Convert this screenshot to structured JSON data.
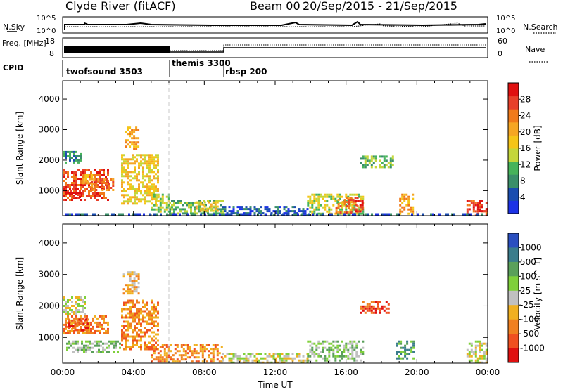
{
  "header": {
    "station": "Clyde River (fitACF)",
    "beam": "Beam 00",
    "date_range": "20/Sep/2015 - 21/Sep/2015"
  },
  "top_panels": {
    "nsky_label": "N.Sky",
    "nsky_ticks": [
      "10^5",
      "10^0"
    ],
    "nsearch_label": "N.Search",
    "nsearch_ticks": [
      "10^5",
      "10^0"
    ],
    "freq_label": "Freq. [MHz]",
    "freq_ticks": [
      "18",
      "8"
    ],
    "nave_label": "Nave",
    "nave_ticks": [
      "60",
      "0"
    ],
    "cpid_label": "CPID",
    "cpids": [
      {
        "name": "twofsound 3503",
        "start_h": 0,
        "end_h": 6
      },
      {
        "name": "themis 3300",
        "start_h": 6,
        "end_h": 9
      },
      {
        "name": "rbsp 200",
        "start_h": 9,
        "end_h": 24
      }
    ]
  },
  "colors": {
    "power": [
      "#1c32e6",
      "#1a4db0",
      "#3a8f6a",
      "#46b35a",
      "#c4d63a",
      "#f5c518",
      "#f5a623",
      "#f07a1a",
      "#e8402a",
      "#e01010"
    ],
    "velocity": [
      "#2a4fc0",
      "#3a7d8c",
      "#5aa05a",
      "#7fd03a",
      "#c0c0c0",
      "#f0b020",
      "#f08020",
      "#f05020",
      "#e01010"
    ],
    "guide_line": "#c8c8c8"
  },
  "chart_data": [
    {
      "type": "heatmap",
      "title": "",
      "ylabel": "Slant Range [km]",
      "xlabel": "",
      "xlim": [
        0,
        24
      ],
      "ylim": [
        180,
        4600
      ],
      "y_ticks": [
        "1000",
        "2000",
        "3000",
        "4000"
      ],
      "colorbar_label": "Power [dB]",
      "colorbar_ticks": [
        "4",
        "8",
        "12",
        "16",
        "20",
        "24",
        "28"
      ],
      "regions": [
        {
          "x0": 0.0,
          "x1": 2.6,
          "y0": 700,
          "y1": 1700,
          "level": 8
        },
        {
          "x0": 1.0,
          "x1": 1.6,
          "y0": 1250,
          "y1": 1550,
          "level": 6
        },
        {
          "x0": 0.2,
          "x1": 1.0,
          "y0": 800,
          "y1": 1100,
          "level": 9
        },
        {
          "x0": 1.6,
          "x1": 2.8,
          "y0": 1000,
          "y1": 1400,
          "level": 7
        },
        {
          "x0": 3.3,
          "x1": 5.4,
          "y0": 600,
          "y1": 2200,
          "level": 5
        },
        {
          "x0": 3.5,
          "x1": 4.3,
          "y0": 2400,
          "y1": 3100,
          "level": 6
        },
        {
          "x0": 0.0,
          "x1": 1.0,
          "y0": 1900,
          "y1": 2300,
          "level": 2
        },
        {
          "x0": 5.0,
          "x1": 6.0,
          "y0": 300,
          "y1": 900,
          "level": 4
        },
        {
          "x0": 6.0,
          "x1": 9.0,
          "y0": 250,
          "y1": 700,
          "level": 3
        },
        {
          "x0": 7.5,
          "x1": 8.8,
          "y0": 350,
          "y1": 650,
          "level": 5
        },
        {
          "x0": 9.0,
          "x1": 13.8,
          "y0": 200,
          "y1": 500,
          "level": 1
        },
        {
          "x0": 13.8,
          "x1": 17.0,
          "y0": 250,
          "y1": 900,
          "level": 4
        },
        {
          "x0": 15.4,
          "x1": 16.6,
          "y0": 300,
          "y1": 800,
          "level": 7
        },
        {
          "x0": 16.4,
          "x1": 16.9,
          "y0": 350,
          "y1": 700,
          "level": 9
        },
        {
          "x0": 16.8,
          "x1": 18.6,
          "y0": 1800,
          "y1": 2150,
          "level": 3
        },
        {
          "x0": 19.0,
          "x1": 19.8,
          "y0": 250,
          "y1": 900,
          "level": 6
        },
        {
          "x0": 22.8,
          "x1": 24.0,
          "y0": 200,
          "y1": 700,
          "level": 8
        },
        {
          "x0": 23.4,
          "x1": 24.0,
          "y0": 300,
          "y1": 500,
          "level": 9
        },
        {
          "x0": 0.0,
          "x1": 24.0,
          "y0": 180,
          "y1": 260,
          "level": 1
        }
      ]
    },
    {
      "type": "heatmap",
      "title": "",
      "ylabel": "Slant Range [km]",
      "xlabel": "Time UT",
      "xlim": [
        0,
        24
      ],
      "ylim": [
        180,
        4600
      ],
      "x_ticks": [
        "00:00",
        "04:00",
        "08:00",
        "12:00",
        "16:00",
        "20:00",
        "00:00"
      ],
      "y_ticks": [
        "1000",
        "2000",
        "3000",
        "4000"
      ],
      "colorbar_label": "Velocity [m s^-1]",
      "colorbar_ticks": [
        "1000",
        "500",
        "100",
        "25",
        "-25",
        "-100",
        "-500",
        "-1000"
      ],
      "regions": [
        {
          "x0": 0.0,
          "x1": 2.6,
          "y0": 1100,
          "y1": 1700,
          "level": 6
        },
        {
          "x0": 0.3,
          "x1": 1.6,
          "y0": 1200,
          "y1": 1600,
          "level": 7
        },
        {
          "x0": 0.0,
          "x1": 1.2,
          "y0": 1700,
          "y1": 2300,
          "level": 4
        },
        {
          "x0": 0.2,
          "x1": 3.2,
          "y0": 500,
          "y1": 900,
          "level": 3
        },
        {
          "x0": 3.3,
          "x1": 5.4,
          "y0": 600,
          "y1": 2200,
          "level": 6
        },
        {
          "x0": 3.4,
          "x1": 4.3,
          "y0": 2400,
          "y1": 3100,
          "level": 5
        },
        {
          "x0": 5.0,
          "x1": 9.0,
          "y0": 250,
          "y1": 800,
          "level": 6
        },
        {
          "x0": 9.0,
          "x1": 13.8,
          "y0": 200,
          "y1": 500,
          "level": 4
        },
        {
          "x0": 13.8,
          "x1": 17.0,
          "y0": 250,
          "y1": 900,
          "level": 3
        },
        {
          "x0": 16.8,
          "x1": 18.4,
          "y0": 1800,
          "y1": 2150,
          "level": 7
        },
        {
          "x0": 18.8,
          "x1": 19.8,
          "y0": 300,
          "y1": 900,
          "level": 2
        },
        {
          "x0": 22.8,
          "x1": 24.0,
          "y0": 200,
          "y1": 900,
          "level": 4
        }
      ]
    }
  ]
}
